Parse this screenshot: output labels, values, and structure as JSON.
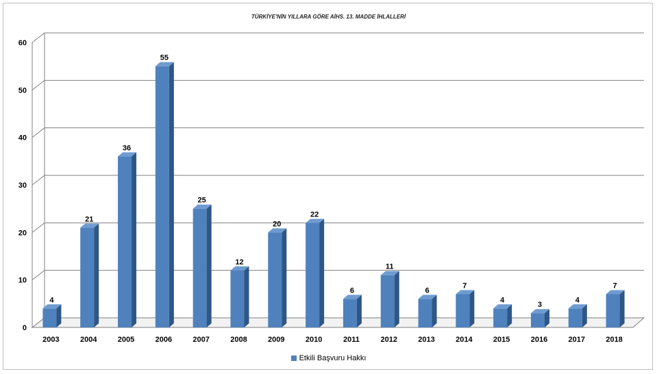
{
  "chart_data": {
    "type": "bar",
    "title": "TÜRKİYE'NİN YILLARA GÖRE AİHS. 13. MADDE İHLALLERİ",
    "categories": [
      "2003",
      "2004",
      "2005",
      "2006",
      "2007",
      "2008",
      "2009",
      "2010",
      "2011",
      "2012",
      "2013",
      "2014",
      "2015",
      "2016",
      "2017",
      "2018"
    ],
    "series": [
      {
        "name": "Etkili Başvuru Hakkı",
        "values": [
          4,
          21,
          36,
          55,
          25,
          12,
          20,
          22,
          6,
          11,
          6,
          7,
          4,
          3,
          4,
          7
        ],
        "color": "#4f81bd"
      }
    ],
    "ylim": [
      0,
      60
    ],
    "yticks": [
      0,
      10,
      20,
      30,
      40,
      50,
      60
    ],
    "data_labels": true,
    "grid": true,
    "style": "3d-bar",
    "legend_position": "bottom"
  }
}
